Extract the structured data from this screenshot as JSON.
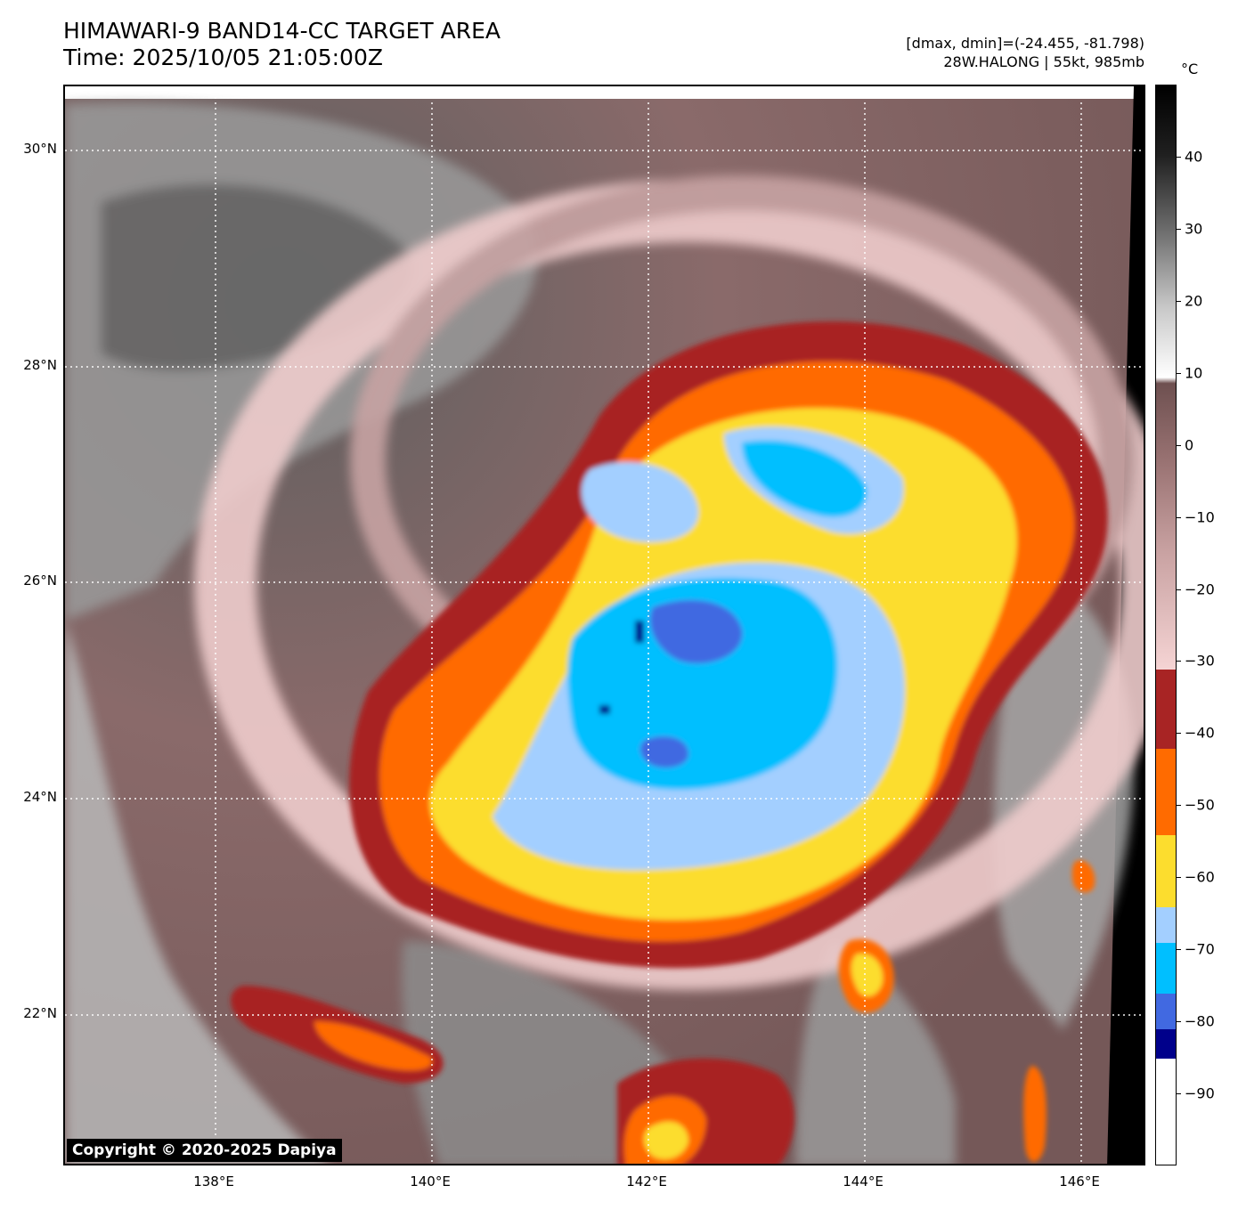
{
  "header": {
    "title_line1": "HIMAWARI-9 BAND14-CC TARGET AREA",
    "title_line2": "Time: 2025/10/05 21:05:00Z",
    "info_line1": "[dmax, dmin]=(-24.455, -81.798)",
    "info_line2": "28W.HALONG | 55kt, 985mb"
  },
  "map": {
    "lat_labels": [
      "30°N",
      "28°N",
      "26°N",
      "24°N",
      "22°N"
    ],
    "lon_labels": [
      "138°E",
      "140°E",
      "142°E",
      "144°E",
      "146°E"
    ],
    "copyright": "Copyright © 2020-2025 Dapiya"
  },
  "colorbar": {
    "unit": "°C",
    "tick_labels": [
      "40",
      "30",
      "20",
      "10",
      "0",
      "−10",
      "−20",
      "−30",
      "−40",
      "−50",
      "−60",
      "−70",
      "−80",
      "−90"
    ],
    "tick_values": [
      40,
      30,
      20,
      10,
      0,
      -10,
      -20,
      -30,
      -40,
      -50,
      -60,
      -70,
      -80,
      -90
    ],
    "range": [
      -100,
      50
    ],
    "bands": [
      {
        "from": -100,
        "to": -85,
        "color": "#ffffff"
      },
      {
        "from": -85,
        "to": -81,
        "color": "#00008b"
      },
      {
        "from": -81,
        "to": -76,
        "color": "#4169e1"
      },
      {
        "from": -76,
        "to": -69,
        "color": "#00bfff"
      },
      {
        "from": -69,
        "to": -64,
        "color": "#a3cfff"
      },
      {
        "from": -64,
        "to": -54,
        "color": "#fcdd2e"
      },
      {
        "from": -54,
        "to": -42,
        "color": "#ff6b00"
      },
      {
        "from": -42,
        "to": -31,
        "color": "#a82424"
      }
    ],
    "gray_ramp": [
      "#f5d4d4",
      "#c9a2a2",
      "#9b7474",
      "#6e5050",
      "#ffffff",
      "#c8c8c8",
      "#6e6e6e",
      "#202020",
      "#000000"
    ]
  }
}
